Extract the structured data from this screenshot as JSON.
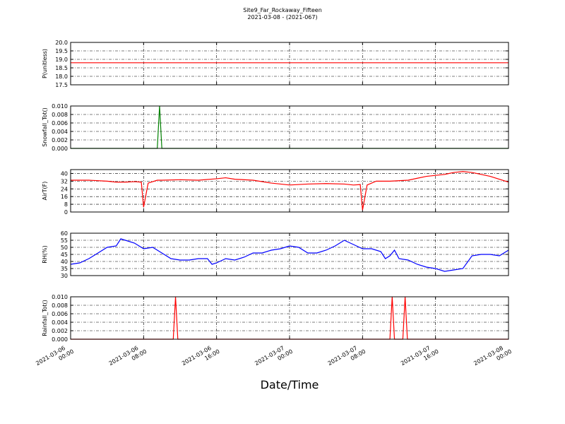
{
  "title": "Site9_Far_Rockaway_Fifteen",
  "subtitle": "2021-03-08 - (2021-067)",
  "xlabel": "Date/Time",
  "chart_data": [
    {
      "type": "line",
      "ylabel": "P(unitless)",
      "xlim": [
        "2021-03-06 00:00",
        "2021-03-08 00:00"
      ],
      "ylim": [
        17.5,
        20
      ],
      "grid": true,
      "yticks": [
        17.5,
        {
          "value": 18,
          "label": "18.0"
        },
        18.5,
        {
          "value": 19,
          "label": "19.0"
        },
        19.5,
        {
          "value": 20,
          "label": "20.0"
        }
      ],
      "x": [
        "2021-03-06 00:00",
        "2021-03-08 00:00"
      ],
      "series": [
        {
          "color": "#ff0000",
          "values": [
            18.8,
            18.8
          ]
        }
      ]
    },
    {
      "type": "line",
      "ylabel": "Snowfall_Tot()",
      "xlim": [
        "2021-03-06 00:00",
        "2021-03-08 00:00"
      ],
      "ylim": [
        0,
        0.01
      ],
      "grid": true,
      "yticks": [
        {
          "value": 0,
          "label": "0.000"
        },
        {
          "value": 0.002,
          "label": "0.002"
        },
        {
          "value": 0.004,
          "label": "0.004"
        },
        {
          "value": 0.006,
          "label": "0.006"
        },
        {
          "value": 0.008,
          "label": "0.008"
        },
        {
          "value": 0.01,
          "label": "0.010"
        }
      ],
      "x": [
        "2021-03-06 00:00",
        "2021-03-06 09:30",
        "2021-03-06 09:45",
        "2021-03-06 10:00",
        "2021-03-08 00:00"
      ],
      "series": [
        {
          "color": "#008000",
          "values": [
            0,
            0,
            0.01,
            0,
            0
          ]
        }
      ]
    },
    {
      "type": "line",
      "ylabel": "AirT(F)",
      "xlim": [
        "2021-03-06 00:00",
        "2021-03-08 00:00"
      ],
      "ylim": [
        0,
        44
      ],
      "grid": true,
      "yticks": [
        0,
        8,
        16,
        24,
        32,
        40
      ],
      "x": [
        "2021-03-06 00:00",
        "2021-03-06 02:00",
        "2021-03-06 04:00",
        "2021-03-06 05:00",
        "2021-03-06 06:00",
        "2021-03-06 07:00",
        "2021-03-06 07:45",
        "2021-03-06 08:00",
        "2021-03-06 08:30",
        "2021-03-06 09:30",
        "2021-03-06 10:00",
        "2021-03-06 12:00",
        "2021-03-06 14:00",
        "2021-03-06 16:00",
        "2021-03-06 17:00",
        "2021-03-06 18:00",
        "2021-03-06 20:00",
        "2021-03-06 22:00",
        "2021-03-07 00:00",
        "2021-03-07 02:00",
        "2021-03-07 04:00",
        "2021-03-07 06:00",
        "2021-03-07 07:00",
        "2021-03-07 07:45",
        "2021-03-07 08:00",
        "2021-03-07 08:30",
        "2021-03-07 09:30",
        "2021-03-07 11:00",
        "2021-03-07 13:00",
        "2021-03-07 14:00",
        "2021-03-07 15:00",
        "2021-03-07 16:00",
        "2021-03-07 17:00",
        "2021-03-07 18:00",
        "2021-03-07 19:00",
        "2021-03-07 20:00",
        "2021-03-07 21:00",
        "2021-03-07 22:00",
        "2021-03-08 00:00"
      ],
      "series": [
        {
          "color": "#ff0000",
          "values": [
            33,
            33,
            32,
            31,
            31,
            31.5,
            31,
            5,
            30,
            33,
            33,
            33.5,
            33,
            34.5,
            35.5,
            34,
            33,
            30,
            28,
            29,
            29.5,
            29,
            28,
            28.5,
            2,
            28,
            32,
            32,
            33,
            35,
            37,
            38,
            39,
            41,
            42,
            41,
            39,
            37,
            31
          ]
        }
      ]
    },
    {
      "type": "line",
      "ylabel": "RH(%)",
      "xlim": [
        "2021-03-06 00:00",
        "2021-03-08 00:00"
      ],
      "ylim": [
        30,
        60
      ],
      "grid": true,
      "yticks": [
        30,
        35,
        40,
        45,
        50,
        55,
        60
      ],
      "x": [
        "2021-03-06 00:00",
        "2021-03-06 01:00",
        "2021-03-06 02:00",
        "2021-03-06 03:00",
        "2021-03-06 04:00",
        "2021-03-06 05:00",
        "2021-03-06 05:30",
        "2021-03-06 06:00",
        "2021-03-06 07:00",
        "2021-03-06 08:00",
        "2021-03-06 09:00",
        "2021-03-06 10:00",
        "2021-03-06 11:00",
        "2021-03-06 12:00",
        "2021-03-06 13:00",
        "2021-03-06 14:00",
        "2021-03-06 15:00",
        "2021-03-06 15:30",
        "2021-03-06 16:00",
        "2021-03-06 17:00",
        "2021-03-06 18:00",
        "2021-03-06 19:00",
        "2021-03-06 20:00",
        "2021-03-06 21:00",
        "2021-03-06 22:00",
        "2021-03-06 23:00",
        "2021-03-07 00:00",
        "2021-03-07 01:00",
        "2021-03-07 02:00",
        "2021-03-07 03:00",
        "2021-03-07 04:00",
        "2021-03-07 05:00",
        "2021-03-07 06:00",
        "2021-03-07 07:00",
        "2021-03-07 08:00",
        "2021-03-07 09:00",
        "2021-03-07 10:00",
        "2021-03-07 10:30",
        "2021-03-07 11:00",
        "2021-03-07 11:30",
        "2021-03-07 12:00",
        "2021-03-07 13:00",
        "2021-03-07 14:00",
        "2021-03-07 15:00",
        "2021-03-07 16:00",
        "2021-03-07 17:00",
        "2021-03-07 18:00",
        "2021-03-07 19:00",
        "2021-03-07 20:00",
        "2021-03-07 21:00",
        "2021-03-07 22:00",
        "2021-03-07 23:00",
        "2021-03-08 00:00"
      ],
      "series": [
        {
          "color": "#0000ff",
          "values": [
            38,
            39,
            42,
            46,
            50,
            51,
            56,
            55,
            53,
            49,
            50,
            46,
            42,
            41,
            41,
            42,
            42,
            38,
            39,
            42,
            41,
            43,
            46,
            46,
            48,
            49,
            51,
            50,
            46,
            46,
            48,
            51,
            55,
            52,
            49,
            49,
            47,
            42,
            44,
            48,
            42,
            41,
            38,
            36,
            35,
            33,
            34,
            35,
            44,
            45,
            45,
            44,
            48
          ]
        }
      ]
    },
    {
      "type": "line",
      "ylabel": "Rainfall_Tot()",
      "xlim": [
        "2021-03-06 00:00",
        "2021-03-08 00:00"
      ],
      "ylim": [
        0,
        0.01
      ],
      "grid": true,
      "yticks": [
        {
          "value": 0,
          "label": "0.000"
        },
        {
          "value": 0.002,
          "label": "0.002"
        },
        {
          "value": 0.004,
          "label": "0.004"
        },
        {
          "value": 0.006,
          "label": "0.006"
        },
        {
          "value": 0.008,
          "label": "0.008"
        },
        {
          "value": 0.01,
          "label": "0.010"
        }
      ],
      "xticks": [
        {
          "value": "2021-03-06 00:00",
          "label": "2021-03-06\n00:00"
        },
        {
          "value": "2021-03-06 08:00",
          "label": "2021-03-06\n08:00"
        },
        {
          "value": "2021-03-06 16:00",
          "label": "2021-03-06\n16:00"
        },
        {
          "value": "2021-03-07 00:00",
          "label": "2021-03-07\n00:00"
        },
        {
          "value": "2021-03-07 08:00",
          "label": "2021-03-07\n08:00"
        },
        {
          "value": "2021-03-07 16:00",
          "label": "2021-03-07\n16:00"
        },
        {
          "value": "2021-03-08 00:00",
          "label": "2021-03-08\n00:00"
        }
      ],
      "x": [
        "2021-03-06 00:00",
        "2021-03-06 11:15",
        "2021-03-06 11:30",
        "2021-03-06 11:45",
        "2021-03-07 11:00",
        "2021-03-07 11:15",
        "2021-03-07 11:30",
        "2021-03-07 12:25",
        "2021-03-07 12:40",
        "2021-03-07 12:55",
        "2021-03-08 00:00"
      ],
      "series": [
        {
          "color": "#ff0000",
          "values": [
            0,
            0,
            0.01,
            0,
            0,
            0.01,
            0,
            0,
            0.01,
            0,
            0
          ]
        }
      ]
    }
  ]
}
